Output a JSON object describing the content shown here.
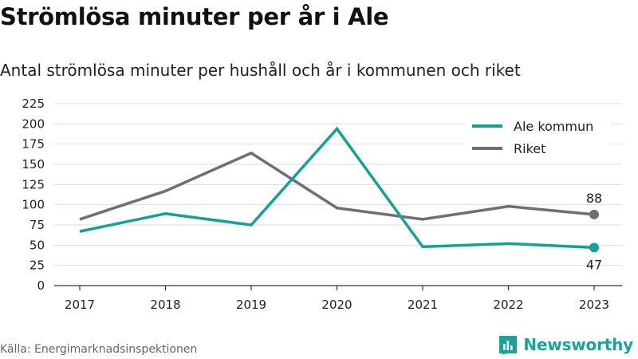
{
  "header": {
    "title": "Strömlösa minuter per år i Ale",
    "subtitle": "Antal strömlösa minuter per hushåll och år i kommunen och riket"
  },
  "footer": {
    "source": "Källa: Energimarknadsinspektionen",
    "brand": "Newsworthy",
    "brand_icon": "newsworthy-logo-icon"
  },
  "colors": {
    "ale": "#16a196",
    "riket": "#6e6e74",
    "grid": "#dddddd"
  },
  "chart_data": {
    "type": "line",
    "x": [
      "2017",
      "2018",
      "2019",
      "2020",
      "2021",
      "2022",
      "2023"
    ],
    "series": [
      {
        "name": "Ale kommun",
        "values": [
          67,
          89,
          75,
          194,
          48,
          52,
          47
        ]
      },
      {
        "name": "Riket",
        "values": [
          82,
          117,
          164,
          96,
          82,
          98,
          88
        ]
      }
    ],
    "end_labels": [
      "47",
      "88"
    ],
    "yticks": [
      "0",
      "25",
      "50",
      "75",
      "100",
      "125",
      "150",
      "175",
      "200",
      "225"
    ],
    "ylim": [
      0,
      225
    ],
    "grid": true,
    "legend_position": "top-right"
  }
}
